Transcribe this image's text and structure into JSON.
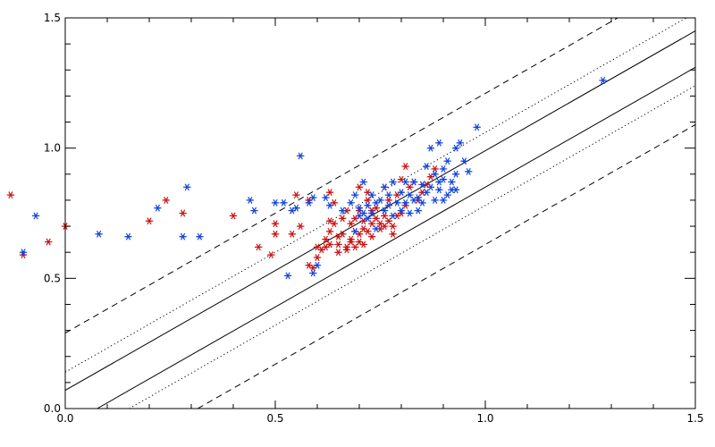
{
  "chart_data": {
    "type": "scatter",
    "title": "",
    "xlabel": "",
    "ylabel": "",
    "xlim": [
      0.0,
      1.5
    ],
    "ylim": [
      0.0,
      1.5
    ],
    "grid": false,
    "x_ticks": [
      {
        "value": 0.0,
        "label": "0.0"
      },
      {
        "value": 0.5,
        "label": "0.5"
      },
      {
        "value": 1.0,
        "label": "1.0"
      },
      {
        "value": 1.5,
        "label": "1.5"
      }
    ],
    "y_ticks": [
      {
        "value": 0.0,
        "label": "0.0"
      },
      {
        "value": 0.5,
        "label": "0.5"
      },
      {
        "value": 1.0,
        "label": "1.0"
      },
      {
        "value": 1.5,
        "label": "1.5"
      }
    ],
    "reference_lines": [
      {
        "style": "solid",
        "slope": 0.92,
        "intercept": 0.07
      },
      {
        "style": "solid",
        "slope": 0.92,
        "intercept": -0.07
      },
      {
        "style": "dotted",
        "slope": 0.92,
        "intercept": 0.14
      },
      {
        "style": "dotted",
        "slope": 0.92,
        "intercept": -0.14
      },
      {
        "style": "dashed",
        "slope": 0.92,
        "intercept": 0.29
      },
      {
        "style": "dashed",
        "slope": 0.92,
        "intercept": -0.29
      }
    ],
    "series": [
      {
        "color": "#cc1111",
        "points": [
          [
            -0.13,
            0.82
          ],
          [
            -0.1,
            0.59
          ],
          [
            -0.04,
            0.64
          ],
          [
            0.0,
            0.7
          ],
          [
            0.2,
            0.72
          ],
          [
            0.24,
            0.8
          ],
          [
            0.28,
            0.75
          ],
          [
            0.4,
            0.74
          ],
          [
            0.46,
            0.62
          ],
          [
            0.49,
            0.59
          ],
          [
            0.5,
            0.71
          ],
          [
            0.5,
            0.67
          ],
          [
            0.54,
            0.67
          ],
          [
            0.55,
            0.82
          ],
          [
            0.56,
            0.7
          ],
          [
            0.58,
            0.8
          ],
          [
            0.58,
            0.55
          ],
          [
            0.59,
            0.54
          ],
          [
            0.6,
            0.58
          ],
          [
            0.6,
            0.62
          ],
          [
            0.61,
            0.61
          ],
          [
            0.62,
            0.62
          ],
          [
            0.62,
            0.65
          ],
          [
            0.63,
            0.68
          ],
          [
            0.63,
            0.63
          ],
          [
            0.63,
            0.72
          ],
          [
            0.63,
            0.83
          ],
          [
            0.64,
            0.79
          ],
          [
            0.64,
            0.71
          ],
          [
            0.65,
            0.66
          ],
          [
            0.65,
            0.63
          ],
          [
            0.65,
            0.6
          ],
          [
            0.66,
            0.67
          ],
          [
            0.66,
            0.73
          ],
          [
            0.67,
            0.76
          ],
          [
            0.67,
            0.61
          ],
          [
            0.67,
            0.62
          ],
          [
            0.68,
            0.65
          ],
          [
            0.68,
            0.71
          ],
          [
            0.68,
            0.64
          ],
          [
            0.69,
            0.73
          ],
          [
            0.69,
            0.68
          ],
          [
            0.69,
            0.62
          ],
          [
            0.7,
            0.67
          ],
          [
            0.7,
            0.64
          ],
          [
            0.7,
            0.76
          ],
          [
            0.7,
            0.85
          ],
          [
            0.71,
            0.69
          ],
          [
            0.71,
            0.72
          ],
          [
            0.71,
            0.63
          ],
          [
            0.72,
            0.83
          ],
          [
            0.72,
            0.68
          ],
          [
            0.72,
            0.8
          ],
          [
            0.73,
            0.76
          ],
          [
            0.73,
            0.71
          ],
          [
            0.73,
            0.66
          ],
          [
            0.74,
            0.73
          ],
          [
            0.74,
            0.77
          ],
          [
            0.75,
            0.71
          ],
          [
            0.75,
            0.69
          ],
          [
            0.76,
            0.74
          ],
          [
            0.76,
            0.85
          ],
          [
            0.76,
            0.7
          ],
          [
            0.77,
            0.72
          ],
          [
            0.77,
            0.8
          ],
          [
            0.78,
            0.7
          ],
          [
            0.78,
            0.67
          ],
          [
            0.79,
            0.74
          ],
          [
            0.79,
            0.82
          ],
          [
            0.8,
            0.75
          ],
          [
            0.8,
            0.88
          ],
          [
            0.81,
            0.93
          ],
          [
            0.81,
            0.78
          ],
          [
            0.82,
            0.85
          ],
          [
            0.83,
            0.87
          ],
          [
            0.84,
            0.8
          ],
          [
            0.85,
            0.83
          ],
          [
            0.86,
            0.86
          ],
          [
            0.87,
            0.89
          ],
          [
            0.88,
            0.92
          ]
        ]
      },
      {
        "color": "#1144dd",
        "points": [
          [
            -0.1,
            0.6
          ],
          [
            -0.07,
            0.74
          ],
          [
            0.08,
            0.67
          ],
          [
            0.15,
            0.66
          ],
          [
            0.22,
            0.77
          ],
          [
            0.28,
            0.66
          ],
          [
            0.29,
            0.85
          ],
          [
            0.32,
            0.66
          ],
          [
            0.44,
            0.8
          ],
          [
            0.45,
            0.76
          ],
          [
            0.5,
            0.79
          ],
          [
            0.52,
            0.79
          ],
          [
            0.53,
            0.51
          ],
          [
            0.54,
            0.76
          ],
          [
            0.55,
            0.77
          ],
          [
            0.56,
            0.97
          ],
          [
            0.58,
            0.79
          ],
          [
            0.59,
            0.81
          ],
          [
            0.59,
            0.52
          ],
          [
            0.6,
            0.55
          ],
          [
            0.62,
            0.81
          ],
          [
            0.63,
            0.78
          ],
          [
            0.66,
            0.76
          ],
          [
            0.68,
            0.79
          ],
          [
            0.69,
            0.82
          ],
          [
            0.69,
            0.68
          ],
          [
            0.7,
            0.74
          ],
          [
            0.7,
            0.77
          ],
          [
            0.71,
            0.75
          ],
          [
            0.71,
            0.87
          ],
          [
            0.72,
            0.73
          ],
          [
            0.72,
            0.78
          ],
          [
            0.73,
            0.82
          ],
          [
            0.73,
            0.75
          ],
          [
            0.74,
            0.69
          ],
          [
            0.74,
            0.79
          ],
          [
            0.75,
            0.8
          ],
          [
            0.76,
            0.76
          ],
          [
            0.76,
            0.85
          ],
          [
            0.77,
            0.78
          ],
          [
            0.77,
            0.82
          ],
          [
            0.78,
            0.74
          ],
          [
            0.78,
            0.87
          ],
          [
            0.79,
            0.79
          ],
          [
            0.8,
            0.76
          ],
          [
            0.8,
            0.83
          ],
          [
            0.81,
            0.87
          ],
          [
            0.81,
            0.79
          ],
          [
            0.82,
            0.82
          ],
          [
            0.82,
            0.75
          ],
          [
            0.83,
            0.8
          ],
          [
            0.83,
            0.87
          ],
          [
            0.84,
            0.76
          ],
          [
            0.84,
            0.81
          ],
          [
            0.85,
            0.79
          ],
          [
            0.85,
            0.86
          ],
          [
            0.86,
            0.83
          ],
          [
            0.86,
            0.93
          ],
          [
            0.87,
            0.85
          ],
          [
            0.87,
            1.0
          ],
          [
            0.88,
            0.8
          ],
          [
            0.88,
            0.9
          ],
          [
            0.89,
            0.87
          ],
          [
            0.89,
            0.84
          ],
          [
            0.9,
            0.8
          ],
          [
            0.9,
            0.88
          ],
          [
            0.91,
            0.82
          ],
          [
            0.91,
            0.95
          ],
          [
            0.92,
            0.87
          ],
          [
            0.92,
            0.84
          ],
          [
            0.93,
            0.9
          ],
          [
            0.93,
            1.0
          ],
          [
            0.94,
            1.02
          ],
          [
            0.95,
            0.95
          ],
          [
            0.96,
            0.91
          ],
          [
            0.98,
            1.08
          ],
          [
            0.89,
            1.02
          ],
          [
            0.9,
            0.92
          ],
          [
            0.93,
            0.84
          ],
          [
            1.28,
            1.26
          ]
        ]
      }
    ]
  }
}
